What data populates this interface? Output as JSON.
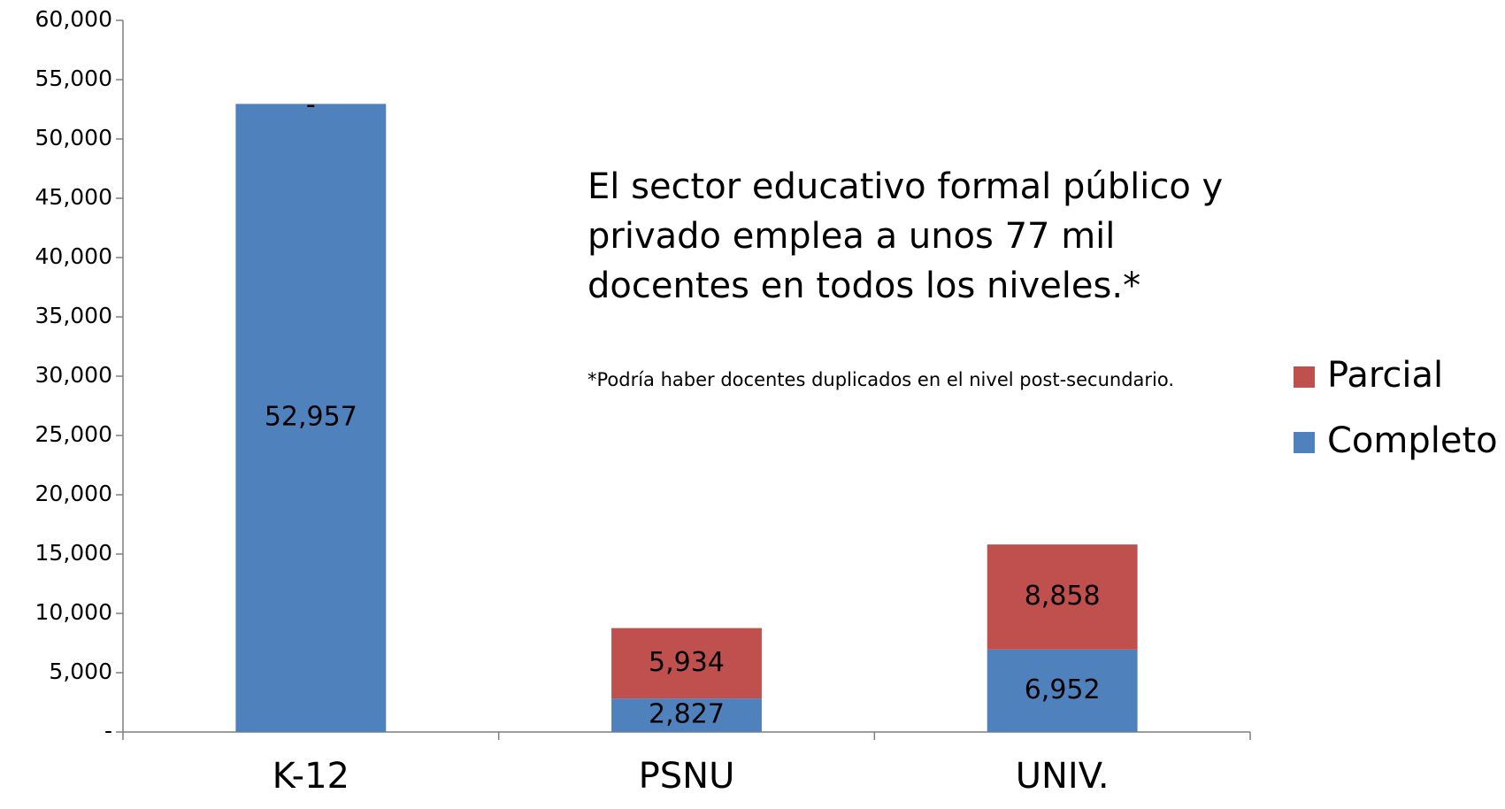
{
  "chart_data": {
    "type": "stacked_bar",
    "categories": [
      "K-12",
      "PSNU",
      "UNIV."
    ],
    "series": [
      {
        "name": "Completo",
        "color": "#4f81bd",
        "values": [
          52957,
          2827,
          6952
        ],
        "value_labels": [
          "52,957",
          "2,827",
          "6,952"
        ]
      },
      {
        "name": "Parcial",
        "color": "#c0504d",
        "values": [
          0,
          5934,
          8858
        ],
        "value_labels": [
          "-",
          "5,934",
          "8,858"
        ]
      }
    ],
    "ylim": [
      0,
      60000
    ],
    "yticks": [
      {
        "value": 0,
        "label": "-"
      },
      {
        "value": 5000,
        "label": "5,000"
      },
      {
        "value": 10000,
        "label": "10,000"
      },
      {
        "value": 15000,
        "label": "15,000"
      },
      {
        "value": 20000,
        "label": "20,000"
      },
      {
        "value": 25000,
        "label": "25,000"
      },
      {
        "value": 30000,
        "label": "30,000"
      },
      {
        "value": 35000,
        "label": "35,000"
      },
      {
        "value": 40000,
        "label": "40,000"
      },
      {
        "value": 45000,
        "label": "45,000"
      },
      {
        "value": 50000,
        "label": "50,000"
      },
      {
        "value": 55000,
        "label": "55,000"
      },
      {
        "value": 60000,
        "label": "60,000"
      }
    ],
    "legend": "right",
    "annotations": [
      "El sector educativo formal público y",
      "privado emplea a unos 77 mil",
      "docentes en todos los niveles.*",
      "*Podría haber docentes duplicados en el nivel post-secundario."
    ]
  }
}
